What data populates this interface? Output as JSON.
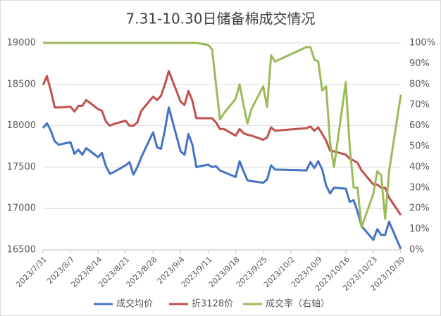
{
  "chart_data": {
    "type": "line",
    "title": "7.31-10.30日储备棉成交情况",
    "x": [
      "2023/7/31",
      "2023/8/1",
      "2023/8/2",
      "2023/8/3",
      "2023/8/4",
      "2023/8/7",
      "2023/8/8",
      "2023/8/9",
      "2023/8/10",
      "2023/8/11",
      "2023/8/14",
      "2023/8/15",
      "2023/8/16",
      "2023/8/17",
      "2023/8/18",
      "2023/8/21",
      "2023/8/22",
      "2023/8/23",
      "2023/8/24",
      "2023/8/25",
      "2023/8/28",
      "2023/8/29",
      "2023/8/30",
      "2023/8/31",
      "2023/9/1",
      "2023/9/4",
      "2023/9/5",
      "2023/9/6",
      "2023/9/7",
      "2023/9/8",
      "2023/9/11",
      "2023/9/12",
      "2023/9/13",
      "2023/9/14",
      "2023/9/15",
      "2023/9/18",
      "2023/9/19",
      "2023/9/20",
      "2023/9/21",
      "2023/9/22",
      "2023/9/25",
      "2023/9/26",
      "2023/9/27",
      "2023/9/28",
      "2023/10/6",
      "2023/10/7",
      "2023/10/8",
      "2023/10/9",
      "2023/10/10",
      "2023/10/11",
      "2023/10/12",
      "2023/10/13",
      "2023/10/16",
      "2023/10/17",
      "2023/10/18",
      "2023/10/19",
      "2023/10/20",
      "2023/10/23",
      "2023/10/24",
      "2023/10/25",
      "2023/10/26",
      "2023/10/27",
      "2023/10/30"
    ],
    "xlim": [
      "2023/7/31",
      "2023/10/30"
    ],
    "xticks": [
      "2023/7/31",
      "2023/8/7",
      "2023/8/14",
      "2023/8/21",
      "2023/8/28",
      "2023/9/4",
      "2023/9/11",
      "2023/9/18",
      "2023/9/25",
      "2023/10/2",
      "2023/10/9",
      "2023/10/16",
      "2023/10/23",
      "2023/10/30"
    ],
    "ylim": [
      16500,
      19000
    ],
    "yticks": [
      16500,
      17000,
      17500,
      18000,
      18500,
      19000
    ],
    "y2lim": [
      0,
      100
    ],
    "y2ticks": [
      {
        "value": 0,
        "label": "0%"
      },
      {
        "value": 10,
        "label": "10%"
      },
      {
        "value": 20,
        "label": "20%"
      },
      {
        "value": 30,
        "label": "30%"
      },
      {
        "value": 40,
        "label": "40%"
      },
      {
        "value": 50,
        "label": "50%"
      },
      {
        "value": 60,
        "label": "60%"
      },
      {
        "value": 70,
        "label": "70%"
      },
      {
        "value": 80,
        "label": "80%"
      },
      {
        "value": 90,
        "label": "90%"
      },
      {
        "value": 100,
        "label": "100%"
      }
    ],
    "grid": true,
    "legend": "bottom",
    "series": [
      {
        "name": "成交均价",
        "color": "#4472c4",
        "values": [
          17970,
          18030,
          17940,
          17810,
          17770,
          17800,
          17660,
          17710,
          17650,
          17730,
          17620,
          17670,
          17510,
          17420,
          17440,
          17520,
          17560,
          17410,
          17500,
          17620,
          17920,
          17740,
          17720,
          17950,
          18220,
          17690,
          17650,
          17900,
          17770,
          17500,
          17530,
          17500,
          17510,
          17460,
          17440,
          17380,
          17570,
          17450,
          17340,
          17330,
          17310,
          17350,
          17520,
          17470,
          17460,
          17560,
          17490,
          17570,
          17470,
          17280,
          17180,
          17250,
          17240,
          17080,
          17100,
          16960,
          16790,
          16620,
          16750,
          16680,
          16680,
          16840,
          16510
        ]
      },
      {
        "name": "折3128价",
        "color": "#c0504d",
        "values": [
          18490,
          18600,
          18420,
          18220,
          18220,
          18230,
          18170,
          18240,
          18240,
          18310,
          18200,
          18180,
          18050,
          18000,
          18020,
          18060,
          18000,
          18000,
          18040,
          18180,
          18350,
          18310,
          18360,
          18500,
          18660,
          18290,
          18250,
          18420,
          18300,
          18090,
          18090,
          18090,
          18040,
          17960,
          17960,
          17880,
          17960,
          17910,
          17890,
          17880,
          17830,
          17860,
          17980,
          17940,
          17970,
          17990,
          17940,
          17980,
          17900,
          17820,
          17700,
          17690,
          17650,
          17600,
          17580,
          17550,
          17460,
          17290,
          17290,
          17250,
          17250,
          17130,
          16920
        ]
      },
      {
        "name": "成交率（右轴）",
        "color": "#9bbb59",
        "axis": "y2",
        "values": [
          100,
          100,
          100,
          100,
          100,
          100,
          100,
          100,
          100,
          100,
          100,
          100,
          100,
          100,
          100,
          100,
          100,
          100,
          100,
          100,
          100,
          100,
          100,
          100,
          100,
          100,
          100,
          100,
          100,
          100,
          99,
          97,
          80,
          63,
          66,
          73,
          80,
          70,
          61,
          68,
          79,
          69,
          94,
          91,
          98,
          98,
          92,
          91,
          77,
          79,
          52,
          40,
          81,
          50,
          30,
          30,
          11,
          27,
          38,
          36,
          15,
          38,
          75
        ]
      }
    ]
  }
}
